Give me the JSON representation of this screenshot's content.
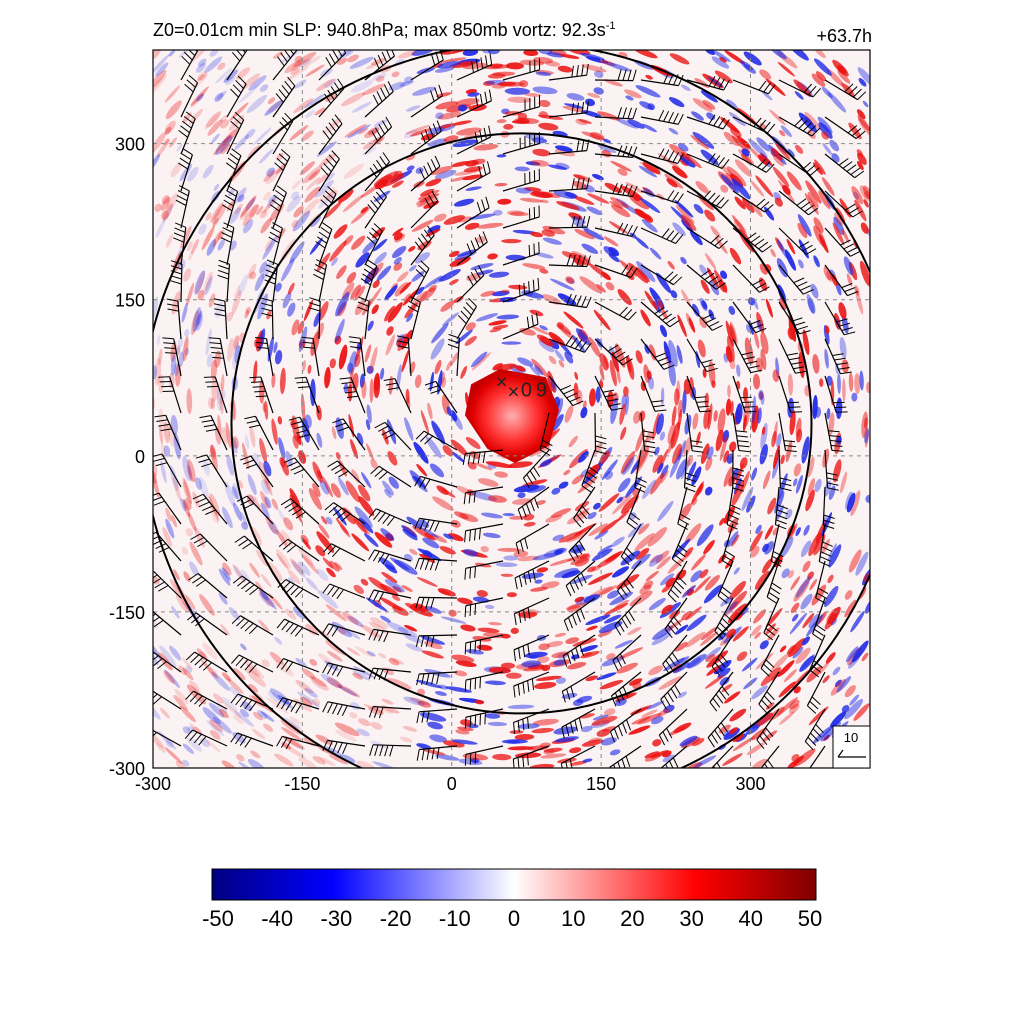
{
  "title": {
    "main": "Z0=0.01cm  min SLP: 940.8hPa; max 850mb vortz:  92.3s",
    "superscript": "-1",
    "time": "+63.7h"
  },
  "chart_data": {
    "type": "heatmap",
    "xlim": [
      -300,
      420
    ],
    "ylim": [
      -300,
      390
    ],
    "x_ticks": [
      "-300",
      "-150",
      "0",
      "150",
      "300"
    ],
    "y_ticks": [
      "-300",
      "-150",
      "0",
      "150",
      "300"
    ],
    "grid": "dashed at 150 intervals",
    "storm_center": {
      "x": 60,
      "y": 60
    },
    "eye_labels": [
      {
        "text": "×",
        "x": 62,
        "y": 60
      },
      {
        "text": "×",
        "x": 50,
        "y": 70
      },
      {
        "text": "0",
        "x": 75,
        "y": 62
      },
      {
        "text": "9",
        "x": 90,
        "y": 62
      }
    ],
    "reference_vector": {
      "label": "10",
      "position": "bottom-right"
    },
    "colorbar": {
      "ticks": [
        "-50",
        "-40",
        "-30",
        "-20",
        "-10",
        "0",
        "10",
        "20",
        "30",
        "40",
        "50"
      ],
      "range": [
        -50,
        50
      ],
      "colors": [
        "#000080",
        "#0000ff",
        "#ffffff",
        "#ff0000",
        "#800000"
      ]
    }
  }
}
